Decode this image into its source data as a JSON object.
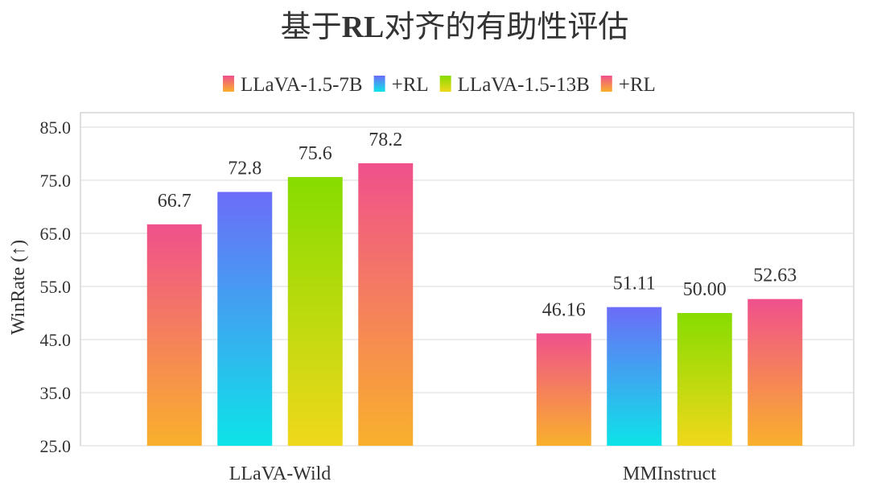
{
  "chart_data": {
    "type": "bar",
    "title_prefix": "基于",
    "title_bold": "RL",
    "title_suffix": "对齐的有助性评估",
    "ylabel": "WinRate (↑)",
    "categories": [
      "LLaVA-Wild",
      "MMInstruct"
    ],
    "series": [
      {
        "name": "LLaVA-1.5-7B",
        "values": [
          66.7,
          46.16
        ],
        "labels": [
          "66.7",
          "46.16"
        ],
        "gradient": [
          "#f0508c",
          "#f9b02c"
        ]
      },
      {
        "name": "+RL",
        "values": [
          72.8,
          51.11
        ],
        "labels": [
          "72.8",
          "51.11"
        ],
        "gradient": [
          "#6c6cf8",
          "#0ce4e8"
        ]
      },
      {
        "name": "LLaVA-1.5-13B",
        "values": [
          75.6,
          50.0
        ],
        "labels": [
          "75.6",
          "50.00"
        ],
        "gradient": [
          "#86dc00",
          "#f0d81c"
        ]
      },
      {
        "name": "+RL",
        "values": [
          78.2,
          52.63
        ],
        "labels": [
          "78.2",
          "52.63"
        ],
        "gradient": [
          "#f0508c",
          "#f9b02c"
        ]
      }
    ],
    "ylim": [
      25.0,
      85.0
    ],
    "yticks": [
      "25.0",
      "35.0",
      "45.0",
      "55.0",
      "65.0",
      "75.0",
      "85.0"
    ],
    "grid": true,
    "legend_position": "top"
  }
}
